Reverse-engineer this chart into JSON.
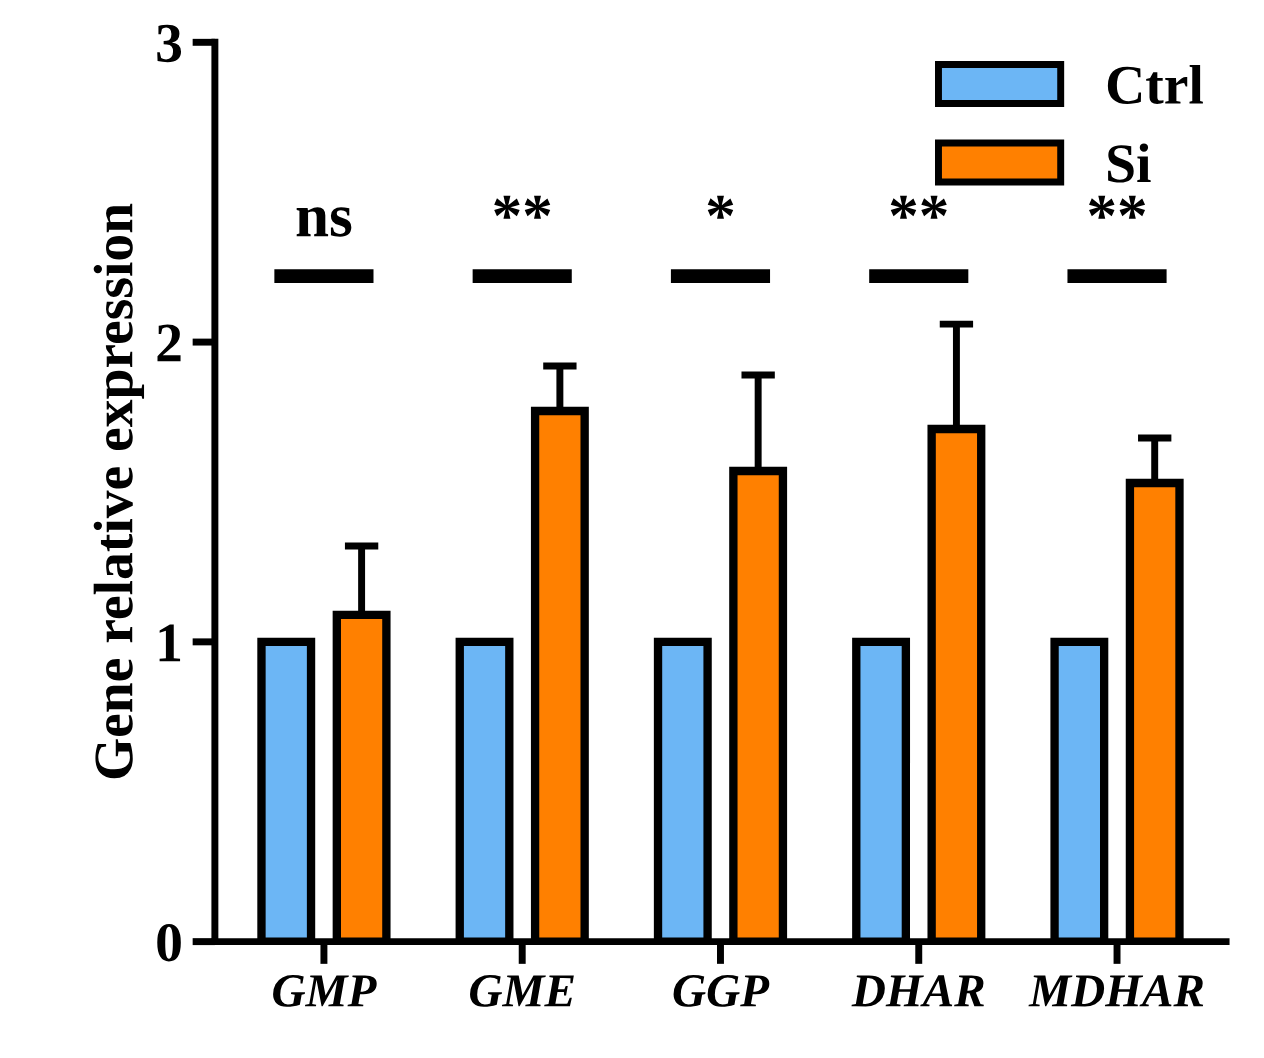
{
  "chart_data": {
    "type": "bar",
    "ylabel": "Gene relative expression",
    "categories": [
      "GMP",
      "GME",
      "GGP",
      "DHAR",
      "MDHAR"
    ],
    "series": [
      {
        "name": "Ctrl",
        "color": "#6cb6f5",
        "values": [
          1.0,
          1.0,
          1.0,
          1.0,
          1.0
        ]
      },
      {
        "name": "Si",
        "color": "#ff8000",
        "values": [
          1.09,
          1.77,
          1.57,
          1.71,
          1.53
        ],
        "errors": [
          [
            1.09,
            1.32
          ],
          [
            1.77,
            1.92
          ],
          [
            1.57,
            1.89
          ],
          [
            1.71,
            2.06
          ],
          [
            1.53,
            1.68
          ]
        ]
      }
    ],
    "ylim": [
      0,
      3
    ],
    "yticks": [
      0,
      1,
      2,
      3
    ],
    "grid": false,
    "legend": "top right",
    "annotations": [
      "ns",
      "**",
      "*",
      "**",
      "**"
    ]
  }
}
